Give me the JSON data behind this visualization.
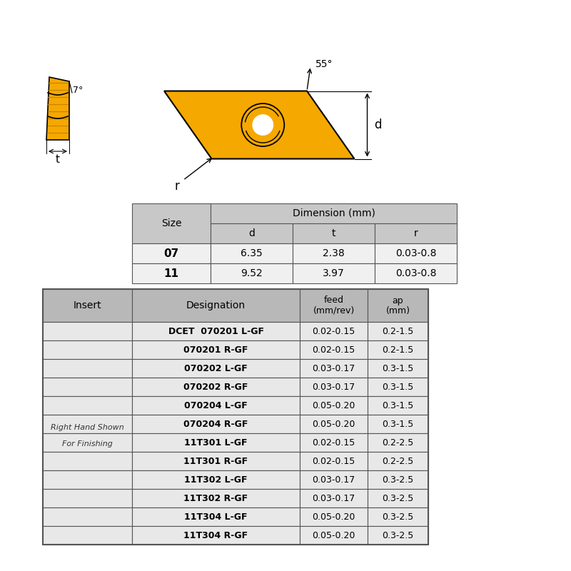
{
  "bg_color": "#ffffff",
  "dim_table": {
    "header_bg": "#c8c8c8",
    "row_bg": "#f0f0f0",
    "sizes": [
      "07",
      "11"
    ],
    "d_vals": [
      "6.35",
      "9.52"
    ],
    "t_vals": [
      "2.38",
      "3.97"
    ],
    "r_vals": [
      "0.03-0.8",
      "0.03-0.8"
    ]
  },
  "insert_table": {
    "header_bg": "#b8b8b8",
    "row_bg": "#e8e8e8",
    "designations": [
      [
        "DCET",
        "070201 L-GF"
      ],
      [
        "",
        "070201 R-GF"
      ],
      [
        "",
        "070202 L-GF"
      ],
      [
        "",
        "070202 R-GF"
      ],
      [
        "",
        "070204 L-GF"
      ],
      [
        "",
        "070204 R-GF"
      ],
      [
        "",
        "11T301 L-GF"
      ],
      [
        "",
        "11T301 R-GF"
      ],
      [
        "",
        "11T302 L-GF"
      ],
      [
        "",
        "11T302 R-GF"
      ],
      [
        "",
        "11T304 L-GF"
      ],
      [
        "",
        "11T304 R-GF"
      ]
    ],
    "feed_vals": [
      "0.02-0.15",
      "0.02-0.15",
      "0.03-0.17",
      "0.03-0.17",
      "0.05-0.20",
      "0.05-0.20",
      "0.02-0.15",
      "0.02-0.15",
      "0.03-0.17",
      "0.03-0.17",
      "0.05-0.20",
      "0.05-0.20"
    ],
    "ap_vals": [
      "0.2-1.5",
      "0.2-1.5",
      "0.3-1.5",
      "0.3-1.5",
      "0.3-1.5",
      "0.3-1.5",
      "0.2-2.5",
      "0.2-2.5",
      "0.3-2.5",
      "0.3-2.5",
      "0.3-2.5",
      "0.3-2.5"
    ]
  },
  "yellow": "#F5A800",
  "silver": "#a0a8b0",
  "silver_dark": "#707880"
}
